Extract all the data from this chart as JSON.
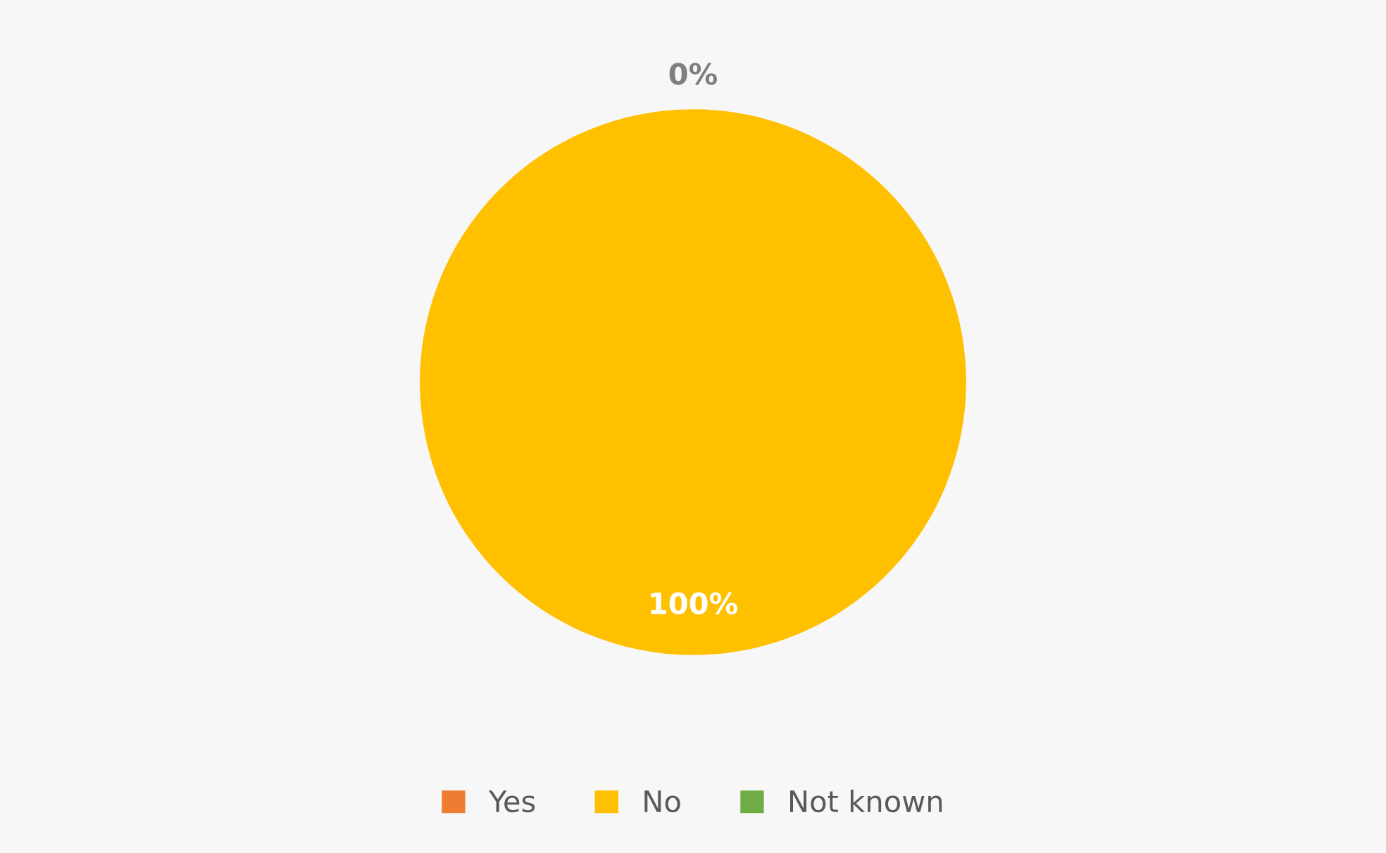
{
  "chart_data": {
    "type": "pie",
    "categories": [
      "Yes",
      "No",
      "Not known"
    ],
    "values": [
      0,
      100,
      0
    ],
    "colors": [
      "#ed7d31",
      "#ffc000",
      "#70ad47"
    ],
    "value_labels": [
      "0%",
      "100%",
      null
    ],
    "legend": "bottom"
  }
}
